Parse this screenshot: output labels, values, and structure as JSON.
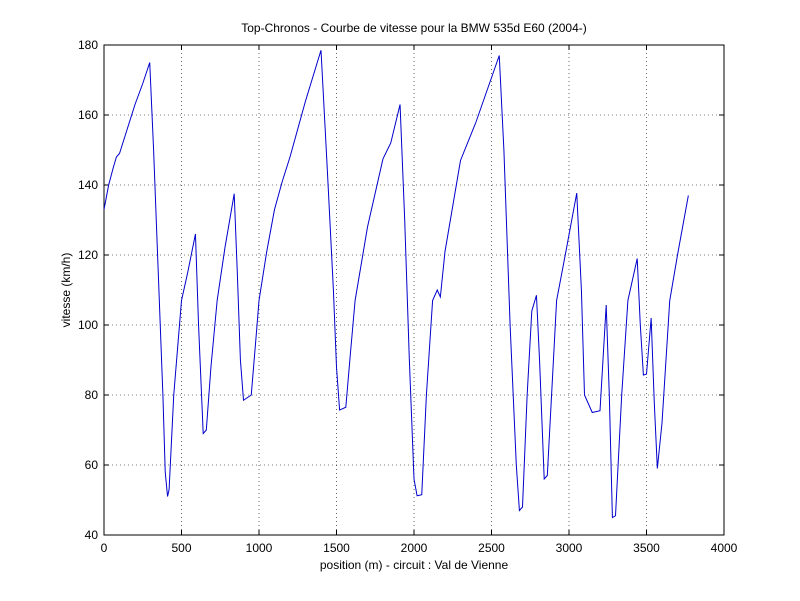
{
  "chart_data": {
    "type": "line",
    "title": "Top-Chronos - Courbe de vitesse pour la BMW 535d E60 (2004-)",
    "xlabel": "position (m) - circuit : Val de Vienne",
    "ylabel": "vitesse (km/h)",
    "x": [
      0,
      30,
      60,
      80,
      100,
      150,
      200,
      250,
      295,
      320,
      350,
      380,
      395,
      410,
      420,
      450,
      500,
      540,
      590,
      610,
      640,
      660,
      690,
      730,
      780,
      840,
      860,
      880,
      900,
      950,
      980,
      1000,
      1050,
      1100,
      1150,
      1200,
      1300,
      1400,
      1440,
      1480,
      1500,
      1520,
      1560,
      1590,
      1620,
      1700,
      1800,
      1850,
      1910,
      1940,
      1970,
      2000,
      2020,
      2050,
      2080,
      2120,
      2150,
      2170,
      2200,
      2300,
      2400,
      2550,
      2580,
      2620,
      2660,
      2680,
      2700,
      2730,
      2760,
      2790,
      2810,
      2840,
      2860,
      2890,
      2920,
      2980,
      3050,
      3080,
      3100,
      3150,
      3200,
      3240,
      3260,
      3280,
      3300,
      3340,
      3380,
      3440,
      3460,
      3480,
      3500,
      3530,
      3550,
      3570,
      3600,
      3650,
      3700,
      3770
    ],
    "series": [
      {
        "name": "vitesse",
        "color": "#0000cc",
        "values": [
          133,
          140,
          145,
          148,
          149,
          156,
          163,
          169,
          175,
          150,
          115,
          80,
          58,
          51,
          53,
          80,
          107,
          115,
          126,
          100,
          69,
          70,
          88,
          107,
          122,
          137.5,
          115,
          90,
          78.5,
          80,
          96,
          107,
          121,
          133,
          141,
          148,
          164,
          178.5,
          145,
          110,
          88,
          75.7,
          76.5,
          92,
          107,
          128,
          147.5,
          152,
          163,
          130,
          90,
          56,
          51.2,
          51.5,
          80,
          107,
          110,
          108,
          121,
          147,
          158,
          177,
          150,
          100,
          60,
          47,
          48,
          80,
          104,
          108.5,
          90,
          56,
          57,
          82,
          107,
          121,
          137.7,
          110,
          80,
          75,
          75.5,
          105.7,
          80,
          45,
          45.5,
          80,
          107,
          119,
          100,
          85.7,
          86,
          102,
          78,
          59,
          72,
          107,
          120,
          137
        ]
      }
    ],
    "xlim": [
      0,
      4000
    ],
    "xticks": [
      0,
      500,
      1000,
      1500,
      2000,
      2500,
      3000,
      3500,
      4000
    ],
    "ylim": [
      40,
      180
    ],
    "yticks": [
      40,
      60,
      80,
      100,
      120,
      140,
      160,
      180
    ],
    "grid": true
  }
}
